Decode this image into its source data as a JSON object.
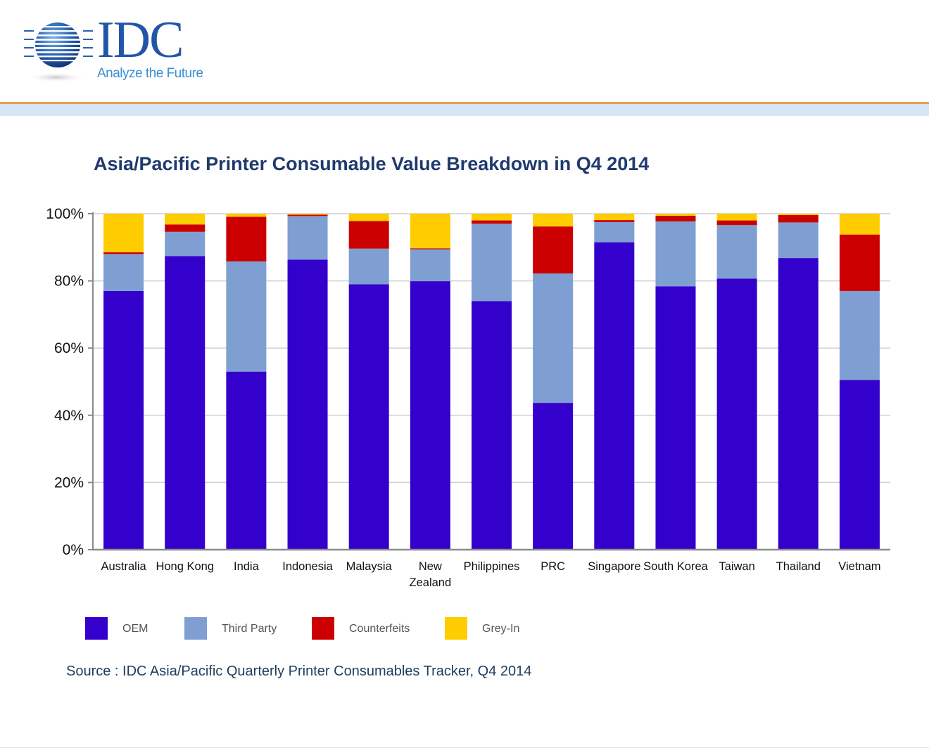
{
  "logo": {
    "wordmark": "IDC",
    "tagline": "Analyze the Future",
    "wordmark_color": "#2255a8",
    "tagline_color": "#3a8fd0",
    "icon": "striped-globe-icon"
  },
  "header": {
    "accent_color": "#e8a14a",
    "band_color": "#d6e6f4"
  },
  "source": "Source : IDC Asia/Pacific Quarterly Printer Consumables Tracker, Q4 2014",
  "chart_data": {
    "type": "bar",
    "stacked": true,
    "title": "Asia/Pacific Printer Consumable Value Breakdown in Q4 2014",
    "xlabel": "",
    "ylabel": "",
    "ylim": [
      0,
      100
    ],
    "yticks": [
      "0%",
      "20%",
      "40%",
      "60%",
      "80%",
      "100%"
    ],
    "grid": true,
    "legend_position": "bottom",
    "categories": [
      [
        "Australia"
      ],
      [
        "Hong Kong"
      ],
      [
        "India"
      ],
      [
        "Indonesia"
      ],
      [
        "Malaysia"
      ],
      [
        "New",
        "Zealand"
      ],
      [
        "Philippines"
      ],
      [
        "PRC"
      ],
      [
        "Singapore"
      ],
      [
        "South Korea"
      ],
      [
        "Taiwan"
      ],
      [
        "Thailand"
      ],
      [
        "Vietnam"
      ]
    ],
    "series": [
      {
        "name": "OEM",
        "color": "#3300cc",
        "values": [
          77,
          87.4,
          53,
          86.3,
          79,
          79.9,
          74,
          43.7,
          91.5,
          78.4,
          80.7,
          86.8,
          50.5
        ]
      },
      {
        "name": "Third Party",
        "color": "#7f9fd3",
        "values": [
          11,
          7.2,
          32.8,
          13,
          10.6,
          9.5,
          23,
          38.5,
          6,
          19.3,
          15.9,
          10.6,
          26.5
        ]
      },
      {
        "name": "Counterfeits",
        "color": "#cc0000",
        "values": [
          0.5,
          2.2,
          13.3,
          0.4,
          8.2,
          0.3,
          1,
          14,
          0.6,
          1.7,
          1.4,
          2.2,
          16.8
        ]
      },
      {
        "name": "Grey-In",
        "color": "#ffcc00",
        "values": [
          11.5,
          3.2,
          0.9,
          0.3,
          2.2,
          10.3,
          2,
          3.8,
          1.9,
          0.6,
          2,
          0.4,
          6.2
        ]
      }
    ]
  }
}
